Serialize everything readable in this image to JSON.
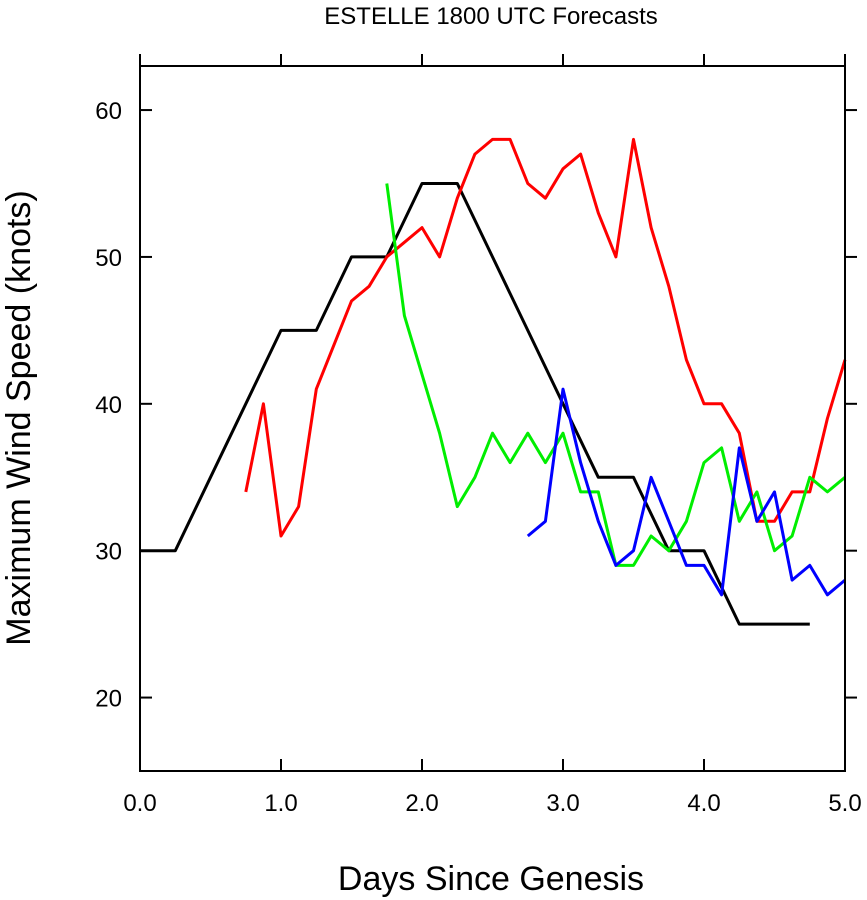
{
  "chart_data": {
    "type": "line",
    "title": "ESTELLE 1800 UTC Forecasts",
    "xlabel": "Days Since Genesis",
    "ylabel": "Maximum Wind Speed (knots)",
    "xlim": [
      0,
      5
    ],
    "ylim": [
      15,
      63
    ],
    "xticks": [
      0,
      1,
      2,
      3,
      4,
      5
    ],
    "xtick_labels": [
      "0.0",
      "1.0",
      "2.0",
      "3.0",
      "4.0",
      "5.0"
    ],
    "yticks": [
      20,
      30,
      40,
      50,
      60
    ],
    "ytick_labels": [
      "20",
      "30",
      "40",
      "50",
      "60"
    ],
    "grid": false,
    "series": [
      {
        "color": "#000000",
        "x": [
          0,
          0.25,
          0.5,
          0.75,
          1.0,
          1.25,
          1.5,
          1.75,
          2.0,
          2.25,
          2.5,
          2.75,
          3.0,
          3.25,
          3.5,
          3.75,
          4.0,
          4.25,
          4.5,
          4.75
        ],
        "y": [
          30,
          30,
          35,
          40,
          45,
          45,
          50,
          50,
          55,
          55,
          50,
          45,
          40,
          35,
          35,
          30,
          30,
          25,
          25,
          25
        ]
      },
      {
        "color": "#ff0000",
        "x": [
          0.75,
          0.875,
          1.0,
          1.125,
          1.25,
          1.375,
          1.5,
          1.625,
          1.75,
          1.875,
          2.0,
          2.125,
          2.25,
          2.375,
          2.5,
          2.625,
          2.75,
          2.875,
          3.0,
          3.125,
          3.25,
          3.375,
          3.5,
          3.625,
          3.75,
          3.875,
          4.0,
          4.125,
          4.25,
          4.375,
          4.5,
          4.625,
          4.75,
          4.875,
          5.0
        ],
        "y": [
          34,
          40,
          31,
          33,
          41,
          44,
          47,
          48,
          50,
          51,
          52,
          50,
          54,
          57,
          58,
          58,
          55,
          54,
          56,
          57,
          53,
          50,
          58,
          52,
          48,
          43,
          40,
          40,
          38,
          32,
          32,
          34,
          34,
          39,
          43
        ]
      },
      {
        "color": "#00ee00",
        "x": [
          1.75,
          1.875,
          2.0,
          2.125,
          2.25,
          2.375,
          2.5,
          2.625,
          2.75,
          2.875,
          3.0,
          3.125,
          3.25,
          3.375,
          3.5,
          3.625,
          3.75,
          3.875,
          4.0,
          4.125,
          4.25,
          4.375,
          4.5,
          4.625,
          4.75,
          4.875,
          5.0
        ],
        "y": [
          55,
          46,
          42,
          38,
          33,
          35,
          38,
          36,
          38,
          36,
          38,
          34,
          34,
          29,
          29,
          31,
          30,
          32,
          36,
          37,
          32,
          34,
          30,
          31,
          35,
          34,
          35
        ]
      },
      {
        "color": "#0000ff",
        "x": [
          2.75,
          2.875,
          3.0,
          3.125,
          3.25,
          3.375,
          3.5,
          3.625,
          3.75,
          3.875,
          4.0,
          4.125,
          4.25,
          4.375,
          4.5,
          4.625,
          4.75,
          4.875,
          5.0
        ],
        "y": [
          31,
          32,
          41,
          36,
          32,
          29,
          30,
          35,
          32,
          29,
          29,
          27,
          37,
          32,
          34,
          28,
          29,
          27,
          28
        ]
      }
    ]
  }
}
